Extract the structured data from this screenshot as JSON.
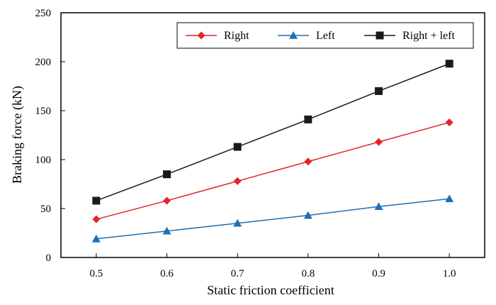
{
  "chart_data": {
    "type": "line",
    "xlabel": "Static friction coefficient",
    "ylabel": "Braking force (kN)",
    "x": [
      0.5,
      0.6,
      0.7,
      0.8,
      0.9,
      1.0
    ],
    "x_tick_labels": [
      "0.5",
      "0.6",
      "0.7",
      "0.8",
      "0.9",
      "1.0"
    ],
    "xlim": [
      0.45,
      1.05
    ],
    "ylim": [
      0,
      250
    ],
    "y_ticks": [
      0,
      50,
      100,
      150,
      200,
      250
    ],
    "y_tick_labels": [
      "0",
      "50",
      "100",
      "150",
      "200",
      "250"
    ],
    "grid": false,
    "legend_position": "top-right",
    "series": [
      {
        "name": "Right",
        "color": "#e0262b",
        "marker": "diamond",
        "values": [
          39,
          58,
          78,
          98,
          118,
          138
        ]
      },
      {
        "name": "Left",
        "color": "#1f6fb5",
        "marker": "triangle",
        "values": [
          19,
          27,
          35,
          43,
          52,
          60
        ]
      },
      {
        "name": "Right + left",
        "color": "#1a1a1a",
        "marker": "square",
        "values": [
          58,
          85,
          113,
          141,
          170,
          198
        ]
      }
    ]
  }
}
